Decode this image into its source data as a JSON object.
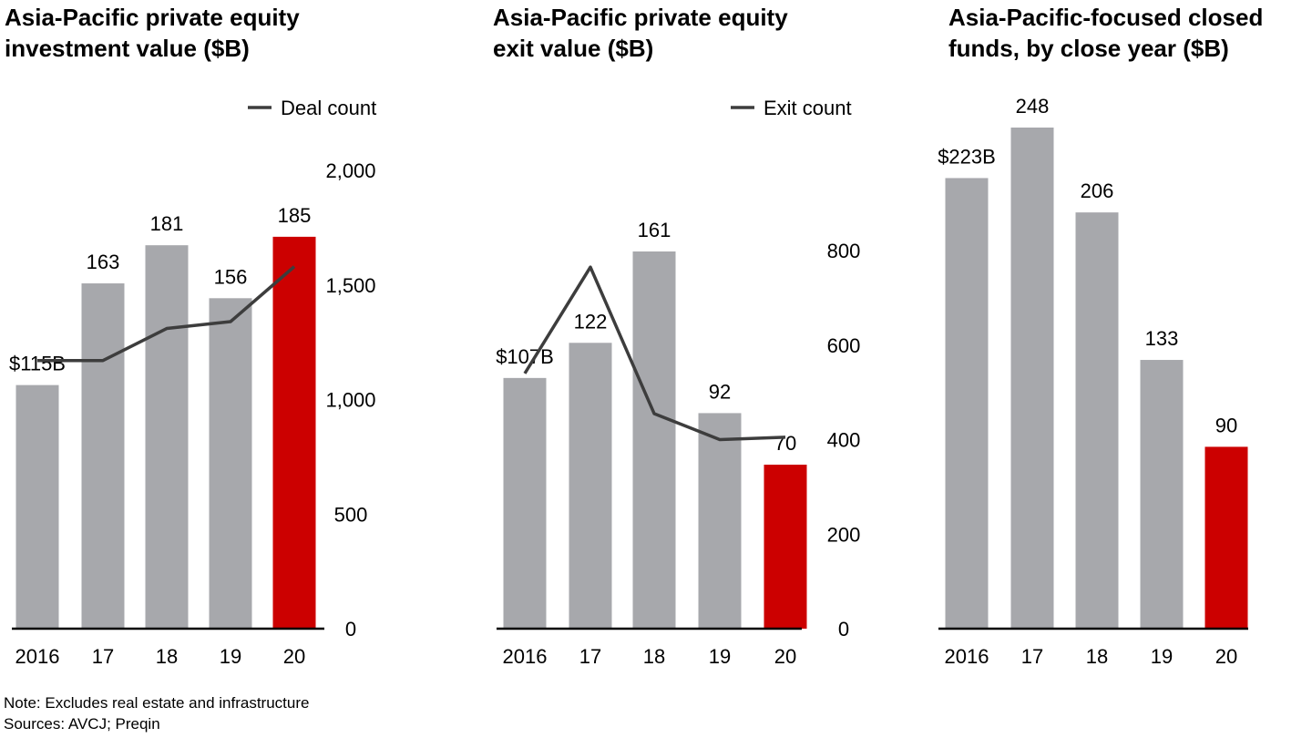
{
  "colors": {
    "bar": "#a7a8ac",
    "highlight": "#cc0000",
    "line": "#3d3d3d",
    "axis": "#000000"
  },
  "chart_data": [
    {
      "type": "bar",
      "title": "Asia-Pacific private equity\ninvestment value ($B)",
      "categories": [
        "2016",
        "17",
        "18",
        "19",
        "20"
      ],
      "values": [
        115,
        163,
        181,
        156,
        185
      ],
      "data_labels": [
        "$115B",
        "163",
        "181",
        "156",
        "185"
      ],
      "highlight_index": 4,
      "ylim": [
        0,
        200
      ],
      "secondary_axis": {
        "ticks": [
          "0",
          "500",
          "1,000",
          "1,500",
          "2,000"
        ],
        "tick_values": [
          0,
          500,
          1000,
          1500,
          2000
        ],
        "ylim": [
          0,
          2000
        ]
      },
      "line_series": {
        "name": "Deal count",
        "values": [
          1170,
          1170,
          1310,
          1340,
          1580
        ]
      },
      "legend": "top-right"
    },
    {
      "type": "bar",
      "title": "Asia-Pacific private equity\nexit value ($B)",
      "categories": [
        "2016",
        "17",
        "18",
        "19",
        "20"
      ],
      "values": [
        107,
        122,
        161,
        92,
        70
      ],
      "data_labels": [
        "$107B",
        "122",
        "161",
        "92",
        "70"
      ],
      "highlight_index": 4,
      "ylim": [
        0,
        161
      ],
      "secondary_axis": {
        "ticks": [
          "0",
          "200",
          "400",
          "600",
          "800"
        ],
        "tick_values": [
          0,
          200,
          400,
          600,
          800
        ],
        "ylim": [
          0,
          800
        ]
      },
      "line_series": {
        "name": "Exit count",
        "values": [
          540,
          765,
          455,
          400,
          405
        ]
      },
      "legend": "top-right"
    },
    {
      "type": "bar",
      "title": "Asia-Pacific-focused closed\nfunds, by close year ($B)",
      "categories": [
        "2016",
        "17",
        "18",
        "19",
        "20"
      ],
      "values": [
        223,
        248,
        206,
        133,
        90
      ],
      "data_labels": [
        "$223B",
        "248",
        "206",
        "133",
        "90"
      ],
      "highlight_index": 4,
      "ylim": [
        0,
        248
      ]
    }
  ],
  "notes": {
    "note": "Note: Excludes real estate and infrastructure",
    "sources": "Sources: AVCJ; Preqin"
  }
}
